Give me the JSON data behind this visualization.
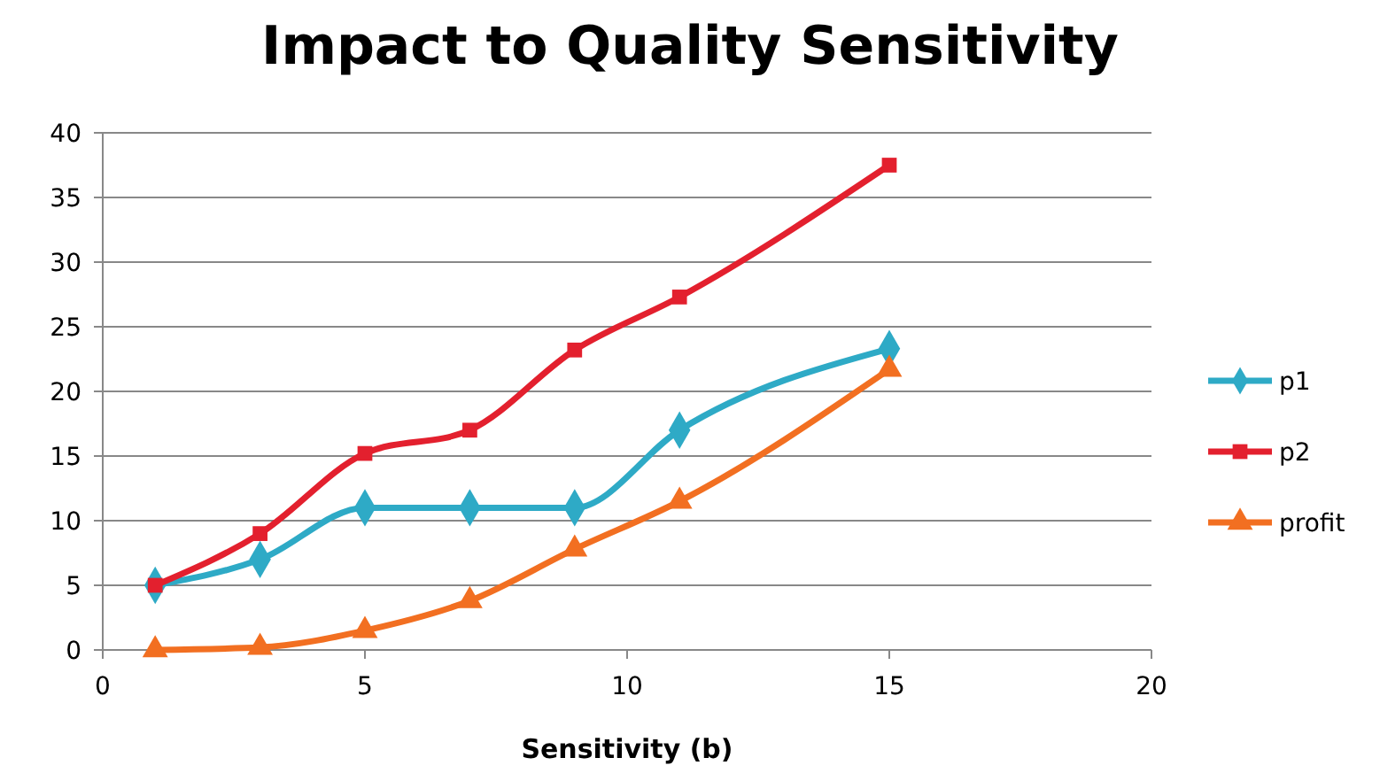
{
  "chart_data": {
    "type": "line",
    "title": "Impact to Quality Sensitivity",
    "xlabel": "Sensitivity (b)",
    "x": [
      1,
      3,
      5,
      7,
      9,
      11,
      15
    ],
    "series": [
      {
        "name": "p1",
        "color": "#2eaac6",
        "marker": "diamond",
        "values": [
          5,
          7,
          11,
          11,
          11,
          17,
          23.3
        ]
      },
      {
        "name": "p2",
        "color": "#e3202e",
        "marker": "square",
        "values": [
          5,
          9,
          15.2,
          17,
          23.2,
          27.3,
          37.5
        ]
      },
      {
        "name": "profit",
        "color": "#f26f21",
        "marker": "triangle",
        "values": [
          0,
          0.2,
          1.5,
          3.8,
          7.8,
          11.5,
          21.7
        ]
      }
    ],
    "xlim": [
      0,
      20
    ],
    "xticks": [
      0,
      5,
      10,
      15,
      20
    ],
    "ylim": [
      0,
      40
    ],
    "yticks": [
      0,
      5,
      10,
      15,
      20,
      25,
      30,
      35,
      40
    ],
    "grid": "y",
    "legend": "right",
    "line_style": "solid"
  }
}
